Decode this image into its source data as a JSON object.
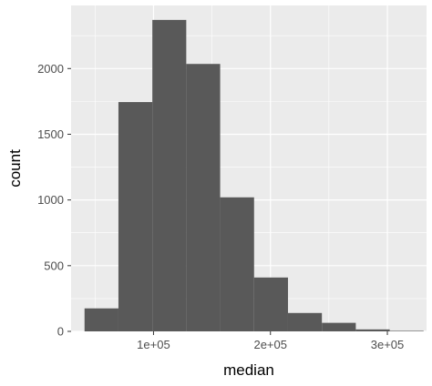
{
  "chart_data": {
    "type": "histogram",
    "title": "",
    "xlabel": "median",
    "ylabel": "count",
    "xlim": [
      29500,
      333500
    ],
    "ylim": [
      0,
      2480
    ],
    "x_ticks": [
      {
        "value": 100000,
        "label": "1e+05"
      },
      {
        "value": 200000,
        "label": "2e+05"
      },
      {
        "value": 300000,
        "label": "3e+05"
      }
    ],
    "y_ticks": [
      {
        "value": 0,
        "label": "0"
      },
      {
        "value": 500,
        "label": "500"
      },
      {
        "value": 1000,
        "label": "1000"
      },
      {
        "value": 1500,
        "label": "1500"
      },
      {
        "value": 2000,
        "label": "2000"
      }
    ],
    "bins": [
      {
        "x0": 41000,
        "x1": 70000,
        "count": 175
      },
      {
        "x0": 70000,
        "x1": 99000,
        "count": 1745
      },
      {
        "x0": 99000,
        "x1": 128000,
        "count": 2370
      },
      {
        "x0": 128000,
        "x1": 157000,
        "count": 2035
      },
      {
        "x0": 157000,
        "x1": 186000,
        "count": 1020
      },
      {
        "x0": 186000,
        "x1": 215000,
        "count": 410
      },
      {
        "x0": 215000,
        "x1": 244000,
        "count": 140
      },
      {
        "x0": 244000,
        "x1": 273000,
        "count": 65
      },
      {
        "x0": 273000,
        "x1": 302000,
        "count": 15
      },
      {
        "x0": 302000,
        "x1": 331000,
        "count": 4
      }
    ],
    "grid": true,
    "colors": {
      "panel": "#ebebeb",
      "grid": "#ffffff",
      "bar": "#595959"
    }
  }
}
